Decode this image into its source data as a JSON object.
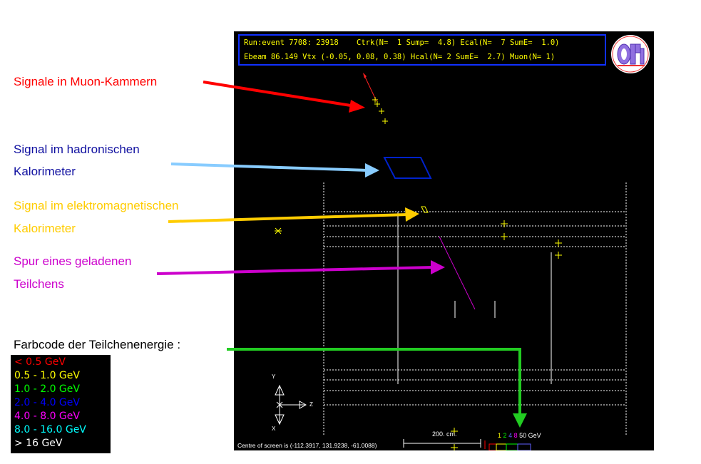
{
  "annotations": {
    "muon": {
      "text": "Signale in Muon-Kammern",
      "color": "#ff0000"
    },
    "hadron_1": {
      "text": "Signal im hadronischen",
      "color": "#1010a0"
    },
    "hadron_2": {
      "text": "Kalorimeter",
      "color": "#1010a0"
    },
    "em_1": {
      "text": "Signal im elektromagnetischen",
      "color": "#ffcc00"
    },
    "em_2": {
      "text": "Kalorimeter",
      "color": "#ffcc00"
    },
    "track_1": {
      "text": "Spur eines geladenen",
      "color": "#cc00cc"
    },
    "track_2": {
      "text": "Teilchens",
      "color": "#cc00cc"
    },
    "farbcode": {
      "text": "Farbcode der Teilchenenergie :",
      "color": "#000000"
    }
  },
  "event_header": {
    "line1": "Run:event 7708: 23918    Ctrk(N=  1 Sump=  4.8) Ecal(N=  7 SumE=  1.0)",
    "line2": "Ebeam 86.149 Vtx (-0.05, 0.08, 0.38) Hcal(N= 2 SumE=  2.7) Muon(N= 1)"
  },
  "logo_text": "OPAL",
  "legend": [
    {
      "text": "< 0.5 GeV",
      "color": "#ff0000"
    },
    {
      "text": "0.5 - 1.0 GeV",
      "color": "#ffff00"
    },
    {
      "text": "1.0 - 2.0 GeV",
      "color": "#00ff00"
    },
    {
      "text": "2.0 - 4.0 GeV",
      "color": "#0000ff"
    },
    {
      "text": "4.0 - 8.0 GeV",
      "color": "#ff00ff"
    },
    {
      "text": "8.0 - 16.0 GeV",
      "color": "#00ffff"
    },
    {
      "text": "> 16 GeV",
      "color": "#ffffff"
    }
  ],
  "axes": {
    "y": "Y",
    "z": "Z",
    "x": "X"
  },
  "centre_text": "Centre of screen is (-112.3917, 131.9238, -61.0088)",
  "scale_text": "200. cm.",
  "ecal_scale": {
    "n1": "1",
    "n2": "2",
    "n4": "4",
    "n8": "8",
    "label": "50 GeV"
  },
  "colors": {
    "muon_arrow": "#ff0000",
    "hcal_arrow": "#88ccff",
    "ecal_arrow": "#ffcc00",
    "track_arrow": "#cc00cc",
    "legend_arrow": "#22cc22",
    "hcal_cell": "#0022cc",
    "track": "#cc00cc",
    "hits": "#ffff00"
  }
}
